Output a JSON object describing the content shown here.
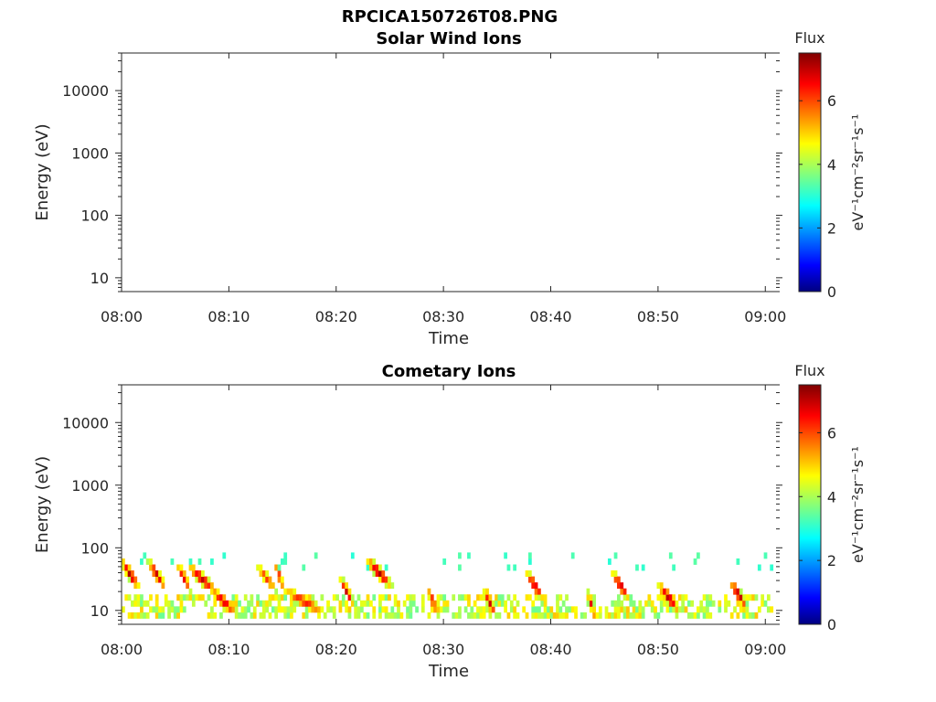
{
  "figure_title": "RPCICA150726T08.PNG",
  "chart_data": [
    {
      "type": "heatmap",
      "title": "Solar Wind Ions",
      "xlabel": "Time",
      "ylabel": "Energy (eV)",
      "x_ticks": [
        "08:00",
        "08:10",
        "08:20",
        "08:30",
        "08:40",
        "08:50",
        "09:00"
      ],
      "xlim_minutes": [
        0,
        61
      ],
      "y_scale": "log",
      "y_ticks": [
        "10",
        "100",
        "1000",
        "10000"
      ],
      "ylim": [
        6,
        40000
      ],
      "colorbar": {
        "label_top": "Flux",
        "unit": "eV⁻¹cm⁻²sr⁻¹s⁻¹",
        "ticks": [
          "0",
          "2",
          "4",
          "6"
        ],
        "range": [
          0,
          7.5
        ],
        "colormap": "jet"
      },
      "events": []
    },
    {
      "type": "heatmap",
      "title": "Cometary Ions",
      "xlabel": "Time",
      "ylabel": "Energy (eV)",
      "x_ticks": [
        "08:00",
        "08:10",
        "08:20",
        "08:30",
        "08:40",
        "08:50",
        "09:00"
      ],
      "xlim_minutes": [
        0,
        61
      ],
      "y_scale": "log",
      "y_ticks": [
        "10",
        "100",
        "1000",
        "10000"
      ],
      "ylim": [
        6,
        40000
      ],
      "colorbar": {
        "label_top": "Flux",
        "unit": "eV⁻¹cm⁻²sr⁻¹s⁻¹",
        "ticks": [
          "0",
          "2",
          "4",
          "6"
        ],
        "range": [
          0,
          7.5
        ],
        "colormap": "jet"
      },
      "background_band": {
        "t_range": [
          0,
          61
        ],
        "e_low": 7,
        "e_high": 20,
        "flux": 4.5
      },
      "events": [
        {
          "t": 0.8,
          "e_peak": 38,
          "flux": 7.2,
          "width": 1.0
        },
        {
          "t": 3.3,
          "e_peak": 37,
          "flux": 7.0,
          "width": 1.0
        },
        {
          "t": 5.8,
          "e_peak": 34,
          "flux": 6.8,
          "width": 0.8
        },
        {
          "t": 7.5,
          "e_peak": 32,
          "flux": 7.0,
          "width": 1.6
        },
        {
          "t": 9.5,
          "e_peak": 14,
          "flux": 6.8,
          "width": 1.6
        },
        {
          "t": 13.5,
          "e_peak": 33,
          "flux": 6.2,
          "width": 1.2
        },
        {
          "t": 14.7,
          "e_peak": 35,
          "flux": 6.5,
          "width": 0.6
        },
        {
          "t": 17.0,
          "e_peak": 14,
          "flux": 6.4,
          "width": 2.6
        },
        {
          "t": 21.0,
          "e_peak": 20,
          "flux": 7.0,
          "width": 0.8
        },
        {
          "t": 24.0,
          "e_peak": 40,
          "flux": 7.2,
          "width": 1.4
        },
        {
          "t": 29.0,
          "e_peak": 14,
          "flux": 6.6,
          "width": 0.7
        },
        {
          "t": 34.3,
          "e_peak": 14,
          "flux": 7.0,
          "width": 0.7
        },
        {
          "t": 38.5,
          "e_peak": 25,
          "flux": 7.0,
          "width": 1.0
        },
        {
          "t": 43.8,
          "e_peak": 12,
          "flux": 6.8,
          "width": 0.5
        },
        {
          "t": 46.5,
          "e_peak": 25,
          "flux": 7.0,
          "width": 1.0
        },
        {
          "t": 51.0,
          "e_peak": 16,
          "flux": 7.2,
          "width": 1.2
        },
        {
          "t": 57.5,
          "e_peak": 18,
          "flux": 7.2,
          "width": 1.0
        }
      ]
    }
  ]
}
